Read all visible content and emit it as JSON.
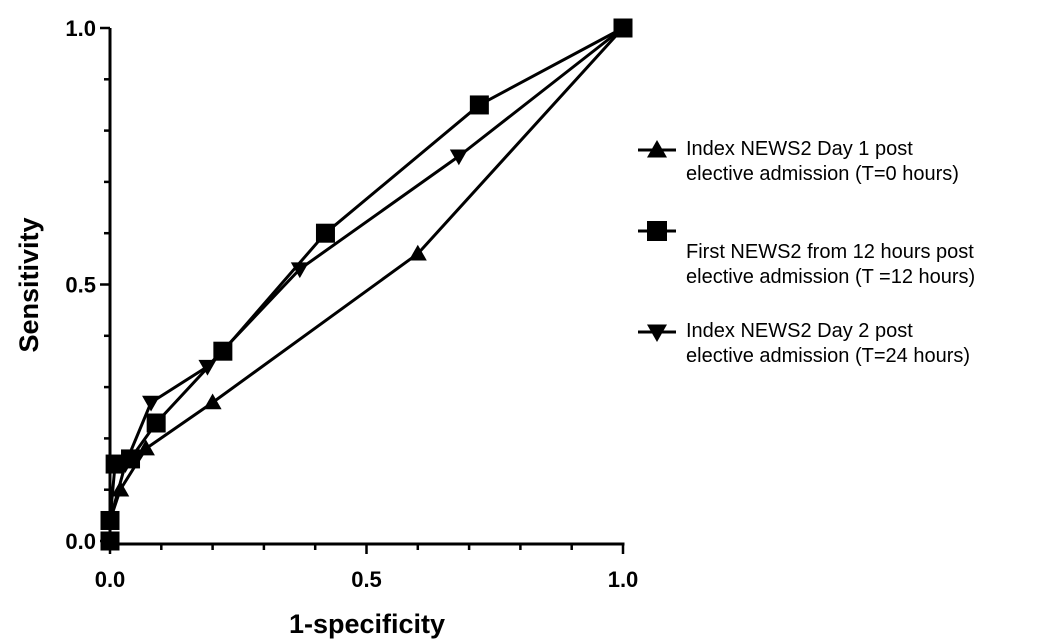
{
  "chart_data": {
    "type": "line",
    "xlabel": "1-specificity",
    "ylabel": "Sensitivity",
    "xlim": [
      0,
      1
    ],
    "ylim": [
      0,
      1
    ],
    "xticks": [
      "0.0",
      "0.5",
      "1.0"
    ],
    "yticks": [
      "0.0",
      "0.5",
      "1.0"
    ],
    "grid": false,
    "legend_position": "right",
    "series": [
      {
        "name_lines": [
          "Index NEWS2 Day 1 post",
          "elective admission (T=0 hours)"
        ],
        "marker": "triangle-up",
        "x": [
          0.0,
          0.0,
          0.02,
          0.07,
          0.2,
          0.6,
          1.0
        ],
        "y": [
          0.0,
          0.04,
          0.1,
          0.18,
          0.27,
          0.56,
          1.0
        ]
      },
      {
        "name_lines": [
          "First NEWS2 from 12 hours post",
          "elective admission (T =12 hours)"
        ],
        "marker": "square",
        "x": [
          0.0,
          0.0,
          0.01,
          0.04,
          0.09,
          0.22,
          0.42,
          0.72,
          1.0
        ],
        "y": [
          0.0,
          0.04,
          0.15,
          0.16,
          0.23,
          0.37,
          0.6,
          0.85,
          1.0
        ]
      },
      {
        "name_lines": [
          "Index NEWS2 Day 2 post",
          "elective admission (T=24 hours)"
        ],
        "marker": "triangle-down",
        "x": [
          0.0,
          0.0,
          0.03,
          0.08,
          0.19,
          0.37,
          0.68,
          1.0
        ],
        "y": [
          0.0,
          0.04,
          0.15,
          0.27,
          0.34,
          0.53,
          0.75,
          1.0
        ]
      }
    ]
  }
}
